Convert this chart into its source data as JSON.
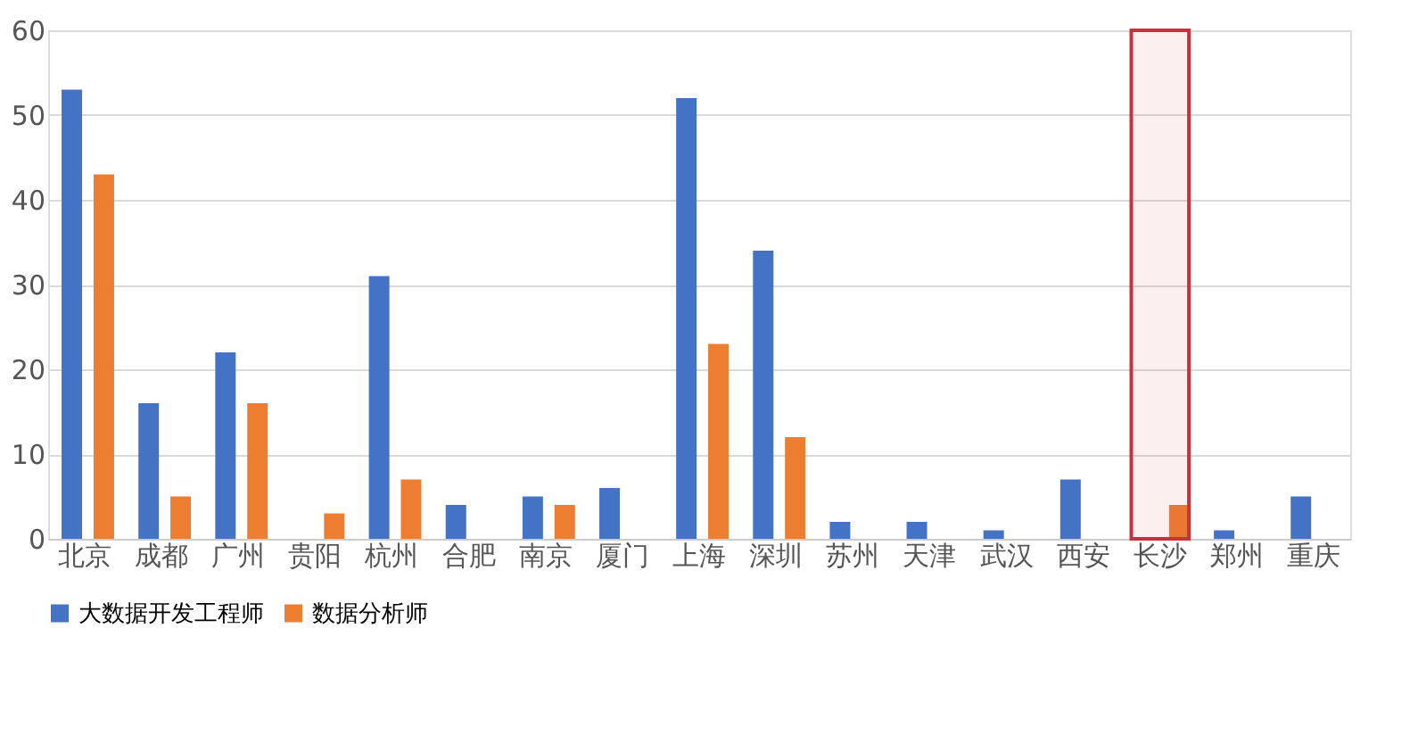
{
  "chart_data": {
    "type": "bar",
    "categories": [
      "北京",
      "成都",
      "广州",
      "贵阳",
      "杭州",
      "合肥",
      "南京",
      "厦门",
      "上海",
      "深圳",
      "苏州",
      "天津",
      "武汉",
      "西安",
      "长沙",
      "郑州",
      "重庆"
    ],
    "series": [
      {
        "name": "大数据开发工程师",
        "color": "#4472c4",
        "values": [
          53,
          16,
          22,
          0,
          31,
          4,
          5,
          6,
          52,
          34,
          2,
          2,
          1,
          7,
          0,
          1,
          5
        ]
      },
      {
        "name": "数据分析师",
        "color": "#ed7d31",
        "values": [
          43,
          5,
          16,
          3,
          7,
          0,
          4,
          0,
          23,
          12,
          0,
          0,
          0,
          0,
          4,
          0,
          0
        ]
      }
    ],
    "ylim": [
      0,
      60
    ],
    "yticks": [
      0,
      10,
      20,
      30,
      40,
      50,
      60
    ],
    "grid": "y",
    "legend": "bottom",
    "bands": [
      {
        "axis": "x",
        "from": "长沙",
        "to": "长沙",
        "color": "#c8313b"
      }
    ]
  }
}
